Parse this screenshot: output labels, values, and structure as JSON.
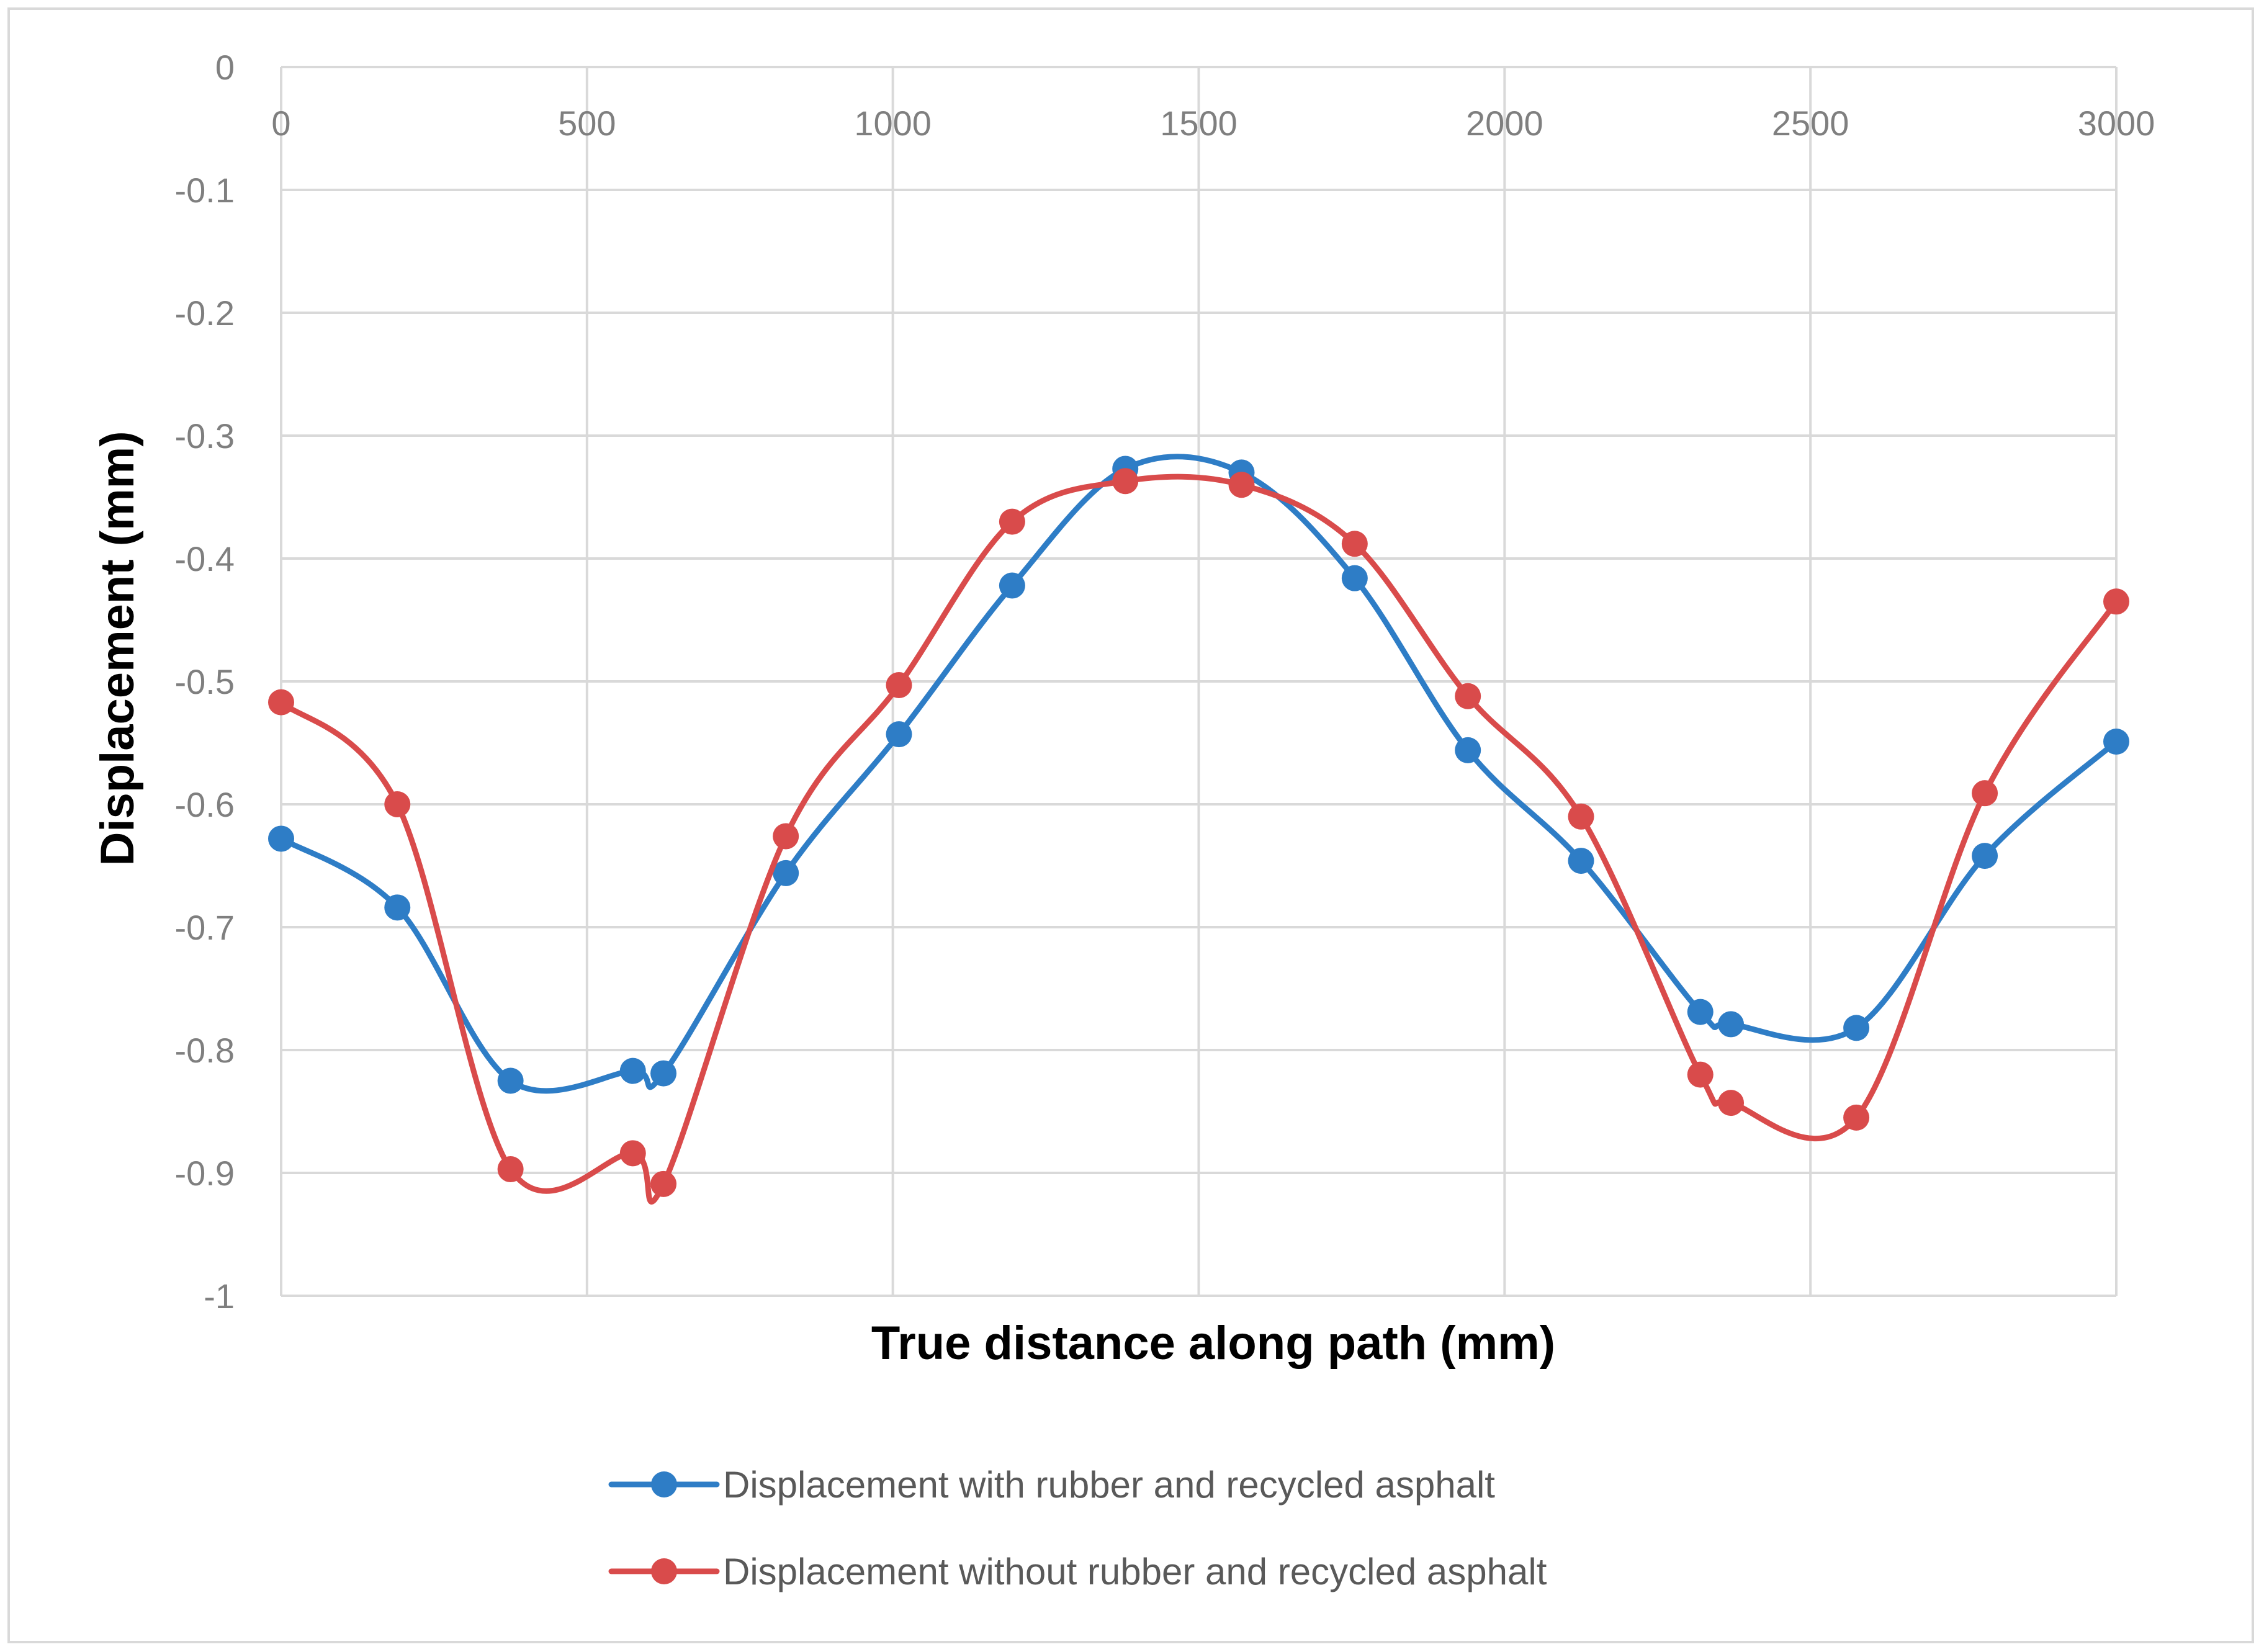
{
  "chart_data": {
    "type": "line",
    "title": "",
    "xlabel": "True distance along path (mm)",
    "ylabel": "Displacement (mm)",
    "xlim": [
      0,
      3000
    ],
    "ylim": [
      -1,
      0
    ],
    "x_ticks": [
      "0",
      "500",
      "1000",
      "1500",
      "2000",
      "2500",
      "3000"
    ],
    "y_ticks": [
      "0",
      "-0.1",
      "-0.2",
      "-0.3",
      "-0.4",
      "-0.5",
      "-0.6",
      "-0.7",
      "-0.8",
      "-0.9",
      "-1"
    ],
    "grid": true,
    "smooth": true,
    "legend_position": "bottom",
    "series": [
      {
        "name": "Displacement with rubber and recycled asphalt",
        "color": "#2e7dc6",
        "x": [
          0,
          190,
          375,
          575,
          625,
          825,
          1010,
          1195,
          1380,
          1570,
          1755,
          1940,
          2125,
          2320,
          2370,
          2575,
          2785,
          3000
        ],
        "y": [
          -0.628,
          -0.684,
          -0.825,
          -0.817,
          -0.819,
          -0.656,
          -0.543,
          -0.422,
          -0.327,
          -0.33,
          -0.416,
          -0.556,
          -0.646,
          -0.769,
          -0.779,
          -0.782,
          -0.642,
          -0.549
        ]
      },
      {
        "name": "Displacement without rubber and recycled asphalt",
        "color": "#d94b4b",
        "x": [
          0,
          190,
          375,
          575,
          625,
          825,
          1010,
          1195,
          1380,
          1570,
          1755,
          1940,
          2125,
          2320,
          2370,
          2575,
          2785,
          3000
        ],
        "y": [
          -0.517,
          -0.6,
          -0.897,
          -0.884,
          -0.909,
          -0.626,
          -0.503,
          -0.37,
          -0.337,
          -0.34,
          -0.388,
          -0.512,
          -0.61,
          -0.82,
          -0.843,
          -0.855,
          -0.591,
          -0.435
        ]
      }
    ]
  }
}
